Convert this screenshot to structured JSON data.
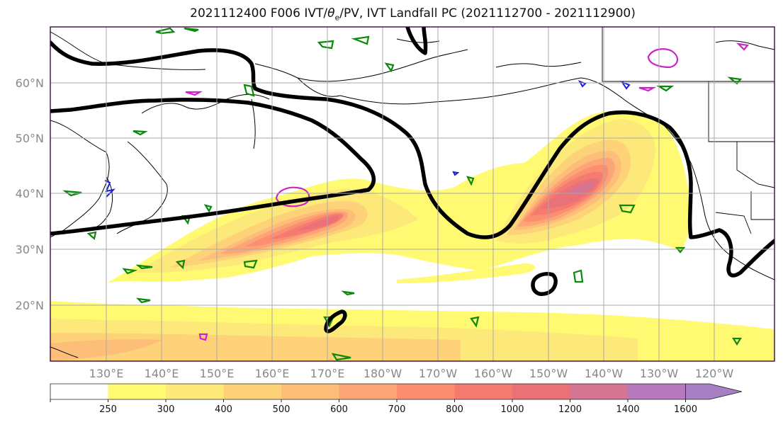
{
  "title": {
    "prefix": "2021112400 F006 IVT/",
    "theta": "θ",
    "sub": "e",
    "suffix": "/PV, IVT Landfall PC (2021112700 - 2021112900)"
  },
  "lat_labels": [
    "20°N",
    "30°N",
    "40°N",
    "50°N",
    "60°N"
  ],
  "lon_labels": [
    "130°E",
    "140°E",
    "150°E",
    "160°E",
    "170°E",
    "180°W",
    "170°W",
    "160°W",
    "150°W",
    "140°W",
    "130°W",
    "120°W"
  ],
  "colorbar": {
    "ticks": [
      "250",
      "300",
      "400",
      "500",
      "600",
      "700",
      "800",
      "1000",
      "1200",
      "1400",
      "1600"
    ],
    "colors": [
      "#ffffff",
      "#fffa72",
      "#fde87a",
      "#fdd279",
      "#fdbe7a",
      "#fda576",
      "#fb8f6f",
      "#f57b70",
      "#e97177",
      "#d47594",
      "#b679bd",
      "#a77fc3"
    ]
  },
  "colors": {
    "pv_contour": "#000000",
    "theta_e_green": "#0a8a0a",
    "theta_e_magenta": "#cc22cc",
    "theta_e_blue": "#1c1cdc",
    "map_frame": "#3b0a3b"
  }
}
